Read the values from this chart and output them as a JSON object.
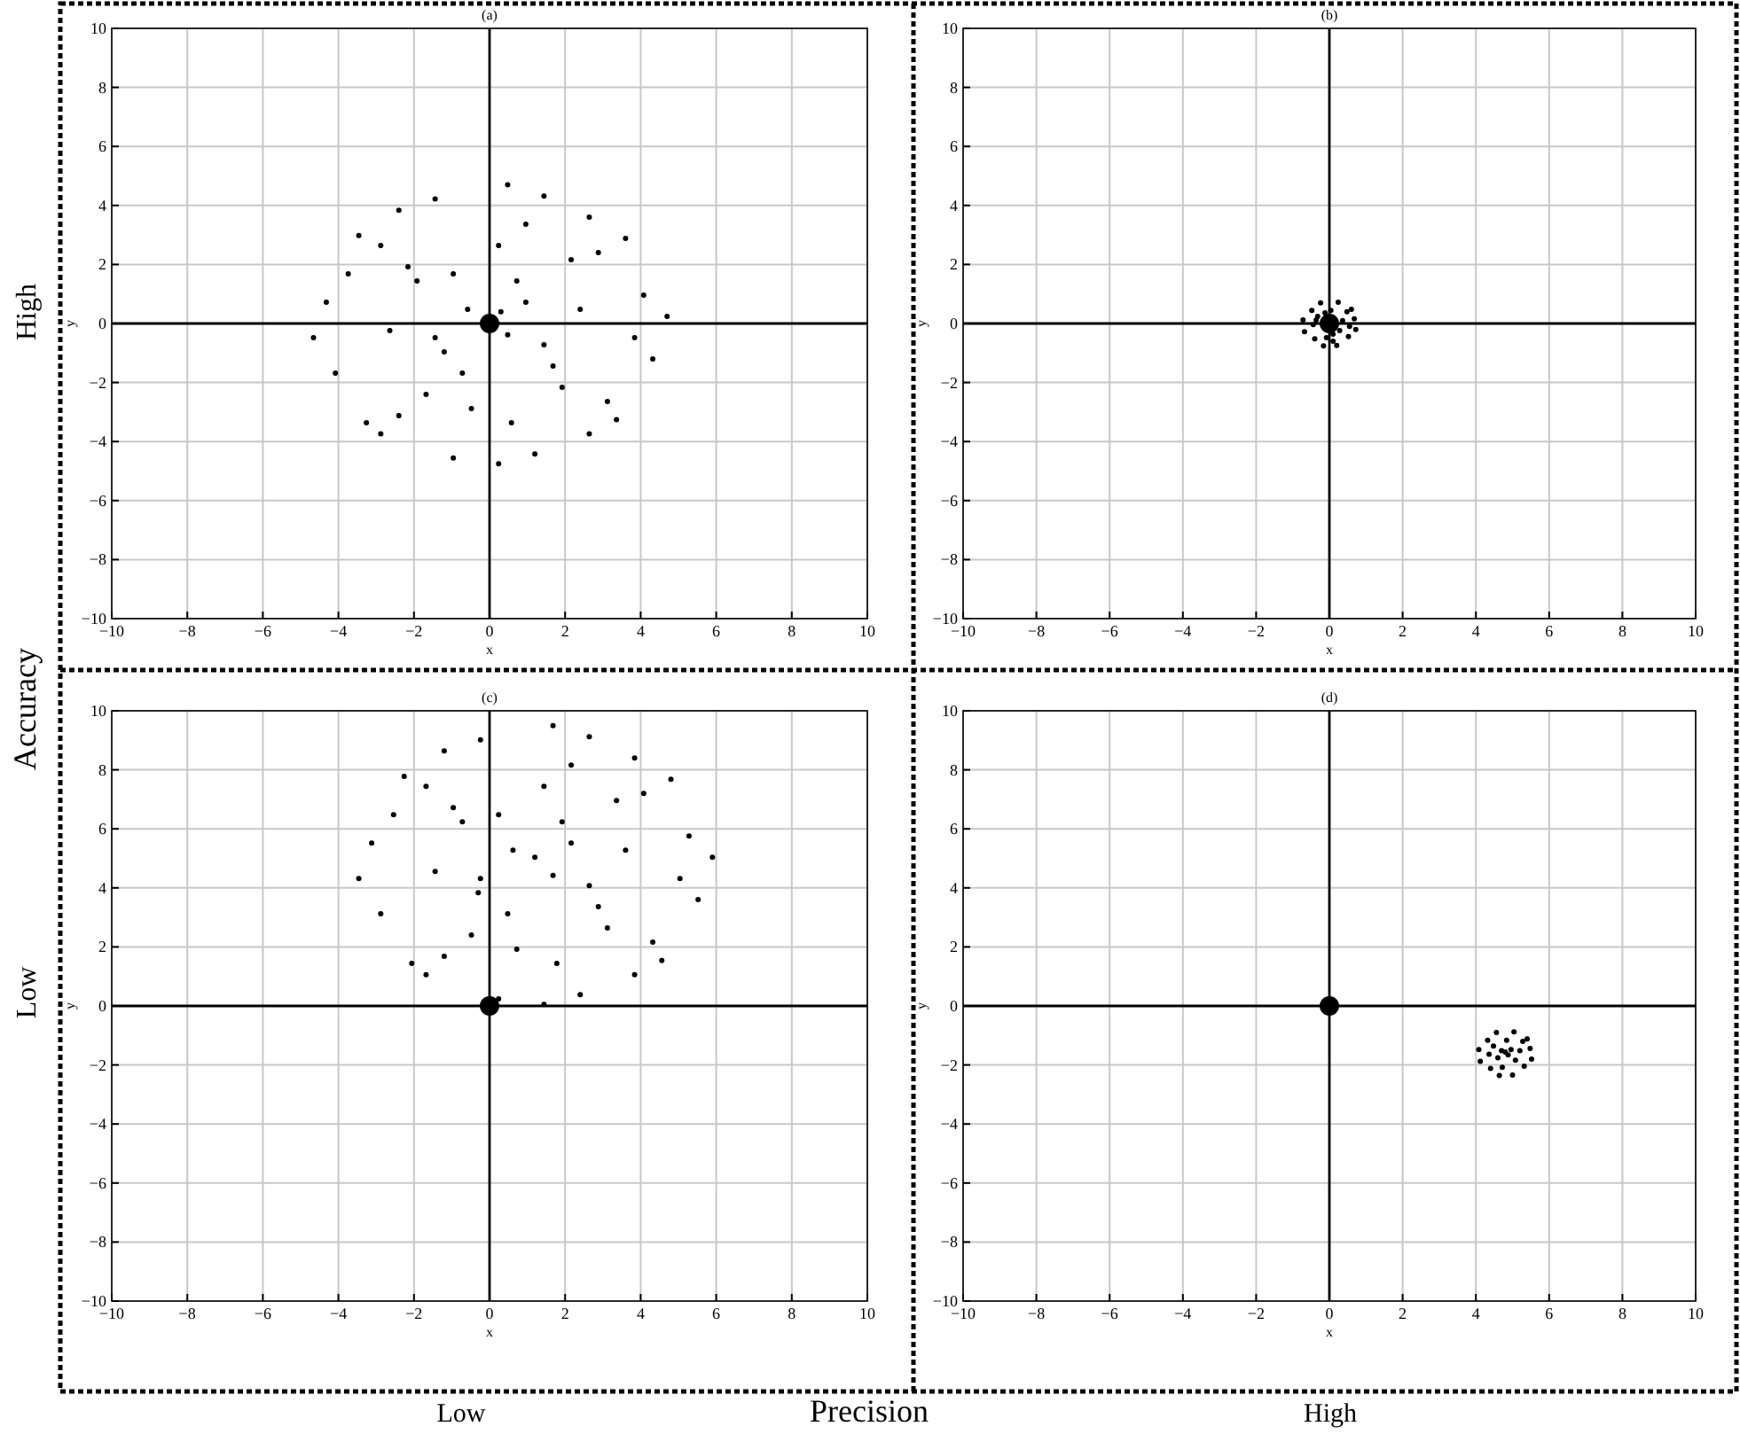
{
  "chart_data": [
    {
      "type": "scatter",
      "title": "(a)",
      "xlabel": "x",
      "ylabel": "y",
      "xlim": [
        -10,
        10
      ],
      "ylim": [
        -10,
        10
      ],
      "xticks": [
        {
          "value": -10,
          "label": "−10"
        },
        {
          "value": -8,
          "label": "−8"
        },
        {
          "value": -6,
          "label": "−6"
        },
        {
          "value": -4,
          "label": "−4"
        },
        {
          "value": -2,
          "label": "−2"
        },
        0,
        2,
        4,
        6,
        8,
        10
      ],
      "yticks": [
        {
          "value": -10,
          "label": "−10"
        },
        {
          "value": -8,
          "label": "−8"
        },
        {
          "value": -6,
          "label": "−6"
        },
        {
          "value": -4,
          "label": "−4"
        },
        {
          "value": -2,
          "label": "−2"
        },
        0,
        2,
        4,
        6,
        8,
        10
      ],
      "grid": true,
      "marker": "circle",
      "series": [
        {
          "color": "#000000",
          "x": [
            0.3,
            0.48,
            -0.58,
            0.96,
            -1.2,
            1.68,
            -1.92,
            2.4,
            -2.64,
            0.24,
            -0.48,
            2.88,
            -2.88,
            3.12,
            -2.4,
            4.08,
            -4.32,
            4.32,
            -4.08,
            1.44,
            -1.44,
            1.2,
            -0.96,
            3.6,
            -3.46,
            3.36,
            -3.26,
            2.16,
            -2.16,
            1.92,
            -1.68,
            4.7,
            -4.66,
            0.48,
            0.24,
            0.72,
            -0.96,
            1.44,
            -1.44,
            2.64,
            -2.4,
            2.64,
            -2.88,
            3.84,
            -3.74,
            0.96,
            -0.72,
            0.58
          ],
          "values": [
            0.4,
            -0.38,
            0.48,
            0.72,
            -0.96,
            -1.44,
            1.44,
            0.48,
            -0.24,
            2.64,
            -2.88,
            2.4,
            2.64,
            -2.64,
            -3.12,
            0.96,
            0.72,
            -1.2,
            -1.68,
            4.32,
            4.22,
            -4.42,
            -4.56,
            2.88,
            2.98,
            -3.26,
            -3.36,
            2.16,
            1.92,
            -2.16,
            -2.4,
            0.24,
            -0.48,
            4.7,
            -4.75,
            1.44,
            1.68,
            -0.72,
            -0.48,
            3.6,
            3.84,
            -3.74,
            -3.74,
            -0.48,
            1.68,
            3.36,
            -1.68,
            -3.36
          ]
        },
        {
          "color": "#000000",
          "x": [
            0
          ],
          "values": [
            0
          ]
        }
      ]
    },
    {
      "type": "scatter",
      "title": "(b)",
      "xlabel": "x",
      "ylabel": "y",
      "xlim": [
        -10,
        10
      ],
      "ylim": [
        -10,
        10
      ],
      "xticks": [
        {
          "value": -10,
          "label": "−10"
        },
        {
          "value": -8,
          "label": "−8"
        },
        {
          "value": -6,
          "label": "−6"
        },
        {
          "value": -4,
          "label": "−4"
        },
        {
          "value": -2,
          "label": "−2"
        },
        0,
        2,
        4,
        6,
        8,
        10
      ],
      "yticks": [
        {
          "value": -10,
          "label": "−10"
        },
        {
          "value": -8,
          "label": "−8"
        },
        {
          "value": -6,
          "label": "−6"
        },
        {
          "value": -4,
          "label": "−4"
        },
        {
          "value": -2,
          "label": "−2"
        },
        0,
        2,
        4,
        6,
        8,
        10
      ],
      "grid": true,
      "marker": "circle",
      "series": [
        {
          "color": "#000000",
          "x": [
            0.36,
            -0.36,
            0.1,
            -0.12,
            0.1,
            0.28,
            -0.32,
            0.55,
            -0.44,
            0.04,
            -0.08,
            0.48,
            -0.48,
            0.52,
            -0.4,
            0.68,
            -0.72,
            0.72,
            -0.68,
            0.24,
            -0.24,
            0.2,
            -0.16,
            0.6
          ],
          "values": [
            0.1,
            0.12,
            -0.36,
            0.36,
            -0.6,
            -0.24,
            0.24,
            -0.1,
            -0.04,
            0.44,
            -0.48,
            0.4,
            0.44,
            -0.44,
            -0.52,
            0.16,
            0.12,
            -0.2,
            -0.28,
            0.72,
            0.7,
            -0.74,
            -0.76,
            0.48
          ]
        },
        {
          "color": "#000000",
          "x": [
            0
          ],
          "values": [
            0
          ]
        }
      ]
    },
    {
      "type": "scatter",
      "title": "(c)",
      "xlabel": "x",
      "ylabel": "y",
      "xlim": [
        -10,
        10
      ],
      "ylim": [
        -10,
        10
      ],
      "xticks": [
        {
          "value": -10,
          "label": "−10"
        },
        {
          "value": -8,
          "label": "−8"
        },
        {
          "value": -6,
          "label": "−6"
        },
        {
          "value": -4,
          "label": "−4"
        },
        {
          "value": -2,
          "label": "−2"
        },
        0,
        2,
        4,
        6,
        8,
        10
      ],
      "yticks": [
        {
          "value": -10,
          "label": "−10"
        },
        {
          "value": -8,
          "label": "−8"
        },
        {
          "value": -6,
          "label": "−6"
        },
        {
          "value": -4,
          "label": "−4"
        },
        {
          "value": -2,
          "label": "−2"
        },
        0,
        2,
        4,
        6,
        8,
        10
      ],
      "grid": true,
      "marker": "circle",
      "series": [
        {
          "color": "#000000",
          "x": [
            1.2,
            1.68,
            0.62,
            2.16,
            -0.3,
            2.88,
            -0.72,
            3.6,
            -1.44,
            1.44,
            0.72,
            4.08,
            -1.68,
            4.32,
            -1.2,
            5.28,
            -3.12,
            5.52,
            -2.88,
            2.64,
            -0.24,
            2.4,
            0.24,
            4.8,
            -2.26,
            4.56,
            -2.06,
            3.36,
            -0.96,
            3.12,
            -0.48,
            5.9,
            -3.46,
            1.68,
            1.44,
            1.92,
            0.24,
            2.64,
            -0.24,
            3.84,
            -1.2,
            3.84,
            -1.68,
            5.04,
            -2.54,
            2.16,
            0.48,
            1.78
          ],
          "values": [
            5.04,
            4.42,
            5.28,
            5.52,
            3.84,
            3.36,
            6.24,
            5.28,
            4.56,
            7.44,
            1.92,
            7.2,
            7.44,
            2.16,
            1.68,
            5.76,
            5.52,
            3.6,
            3.12,
            9.12,
            9.02,
            0.38,
            0.24,
            7.68,
            7.78,
            1.54,
            1.44,
            6.96,
            6.72,
            2.64,
            2.4,
            5.04,
            4.32,
            9.5,
            0.05,
            6.24,
            6.48,
            4.08,
            4.32,
            8.4,
            8.64,
            1.06,
            1.06,
            4.32,
            6.48,
            8.16,
            3.12,
            1.44
          ]
        },
        {
          "color": "#000000",
          "x": [
            0
          ],
          "values": [
            0
          ]
        }
      ]
    },
    {
      "type": "scatter",
      "title": "(d)",
      "xlabel": "x",
      "ylabel": "y",
      "xlim": [
        -10,
        10
      ],
      "ylim": [
        -10,
        10
      ],
      "xticks": [
        {
          "value": -10,
          "label": "−10"
        },
        {
          "value": -8,
          "label": "−8"
        },
        {
          "value": -6,
          "label": "−6"
        },
        {
          "value": -4,
          "label": "−4"
        },
        {
          "value": -2,
          "label": "−2"
        },
        0,
        2,
        4,
        6,
        8,
        10
      ],
      "yticks": [
        {
          "value": -10,
          "label": "−10"
        },
        {
          "value": -8,
          "label": "−8"
        },
        {
          "value": -6,
          "label": "−6"
        },
        {
          "value": -4,
          "label": "−4"
        },
        {
          "value": -2,
          "label": "−2"
        },
        0,
        2,
        4,
        6,
        8,
        10
      ],
      "grid": true,
      "marker": "circle",
      "series": [
        {
          "color": "#000000",
          "x": [
            4.8,
            4.88,
            4.7,
            4.96,
            4.6,
            5.08,
            4.48,
            5.2,
            4.36,
            4.84,
            4.72,
            5.28,
            4.32,
            5.32,
            4.4,
            5.48,
            4.08,
            5.52,
            4.12,
            5.04,
            4.56,
            5,
            4.64,
            5.4
          ],
          "values": [
            -1.56,
            -1.66,
            -1.52,
            -1.48,
            -1.76,
            -1.84,
            -1.36,
            -1.52,
            -1.64,
            -1.16,
            -2.08,
            -1.2,
            -1.16,
            -2.04,
            -2.12,
            -1.44,
            -1.48,
            -1.8,
            -1.88,
            -0.88,
            -0.9,
            -2.34,
            -2.36,
            -1.12
          ]
        },
        {
          "color": "#000000",
          "x": [
            0
          ],
          "values": [
            0
          ]
        }
      ]
    },
    {
      "type": "other",
      "annotations": [
        "High",
        "Low",
        "Accuracy",
        "Low",
        "Precision",
        "High"
      ]
    }
  ]
}
